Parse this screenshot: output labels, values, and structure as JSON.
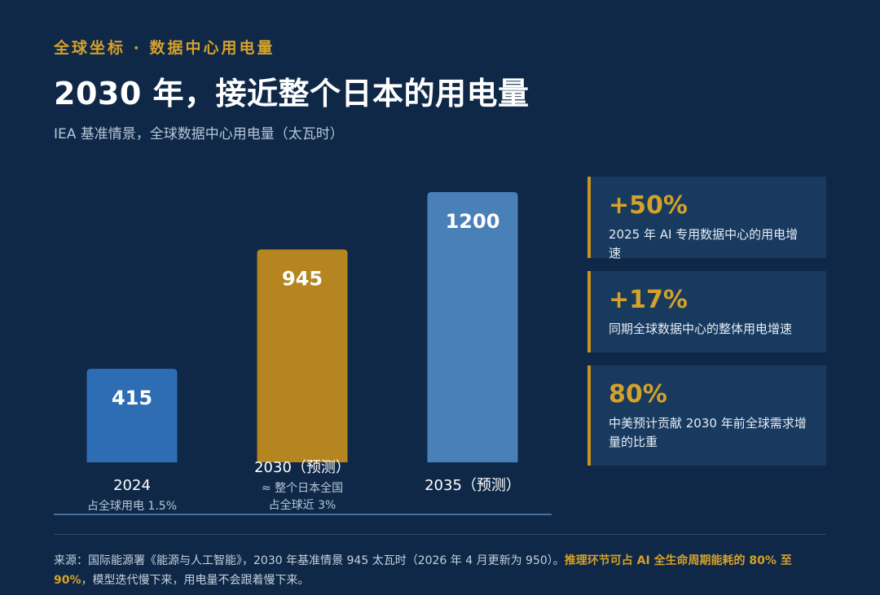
{
  "header": {
    "kicker": "全球坐标 · 数据中心用电量",
    "title": "2030 年，接近整个日本的用电量",
    "subtitle": "IEA 基准情景，全球数据中心用电量（太瓦时）"
  },
  "chart_data": {
    "type": "bar",
    "categories": [
      "2024",
      "2030（预测）",
      "2035（预测）"
    ],
    "values": [
      415,
      945,
      1200
    ],
    "value_labels": [
      "415",
      "945",
      "1200"
    ],
    "notes": [
      [
        "占全球用电 1.5%"
      ],
      [
        "≈ 整个日本全国",
        "占全球近 3%"
      ],
      []
    ],
    "colors": [
      "#2e6db3",
      "#b5861f",
      "#4a80b8"
    ],
    "unit": "太瓦时",
    "ylim": [
      0,
      1200
    ],
    "grid": false
  },
  "side_cards": [
    {
      "big": "+50%",
      "desc": [
        "2025 年 AI 专用数据中心的用电增速"
      ]
    },
    {
      "big": "+17%",
      "desc": [
        "同期全球数据中心的整体用电增速"
      ]
    },
    {
      "big": "80%",
      "desc": [
        "中美预计贡献 2030 年前全球需求增",
        "量的比重"
      ]
    }
  ],
  "footer": {
    "source_plain": "来源：国际能源署《能源与人工智能》，2030 年基准情景 945 太瓦时（2026 年 4 月更新为 950）。",
    "source_highlight": "推理环节可占 AI 全生命周期能耗的 80% 至 90%",
    "source_tail": "，模型迭代慢下来，用电量不会跟着慢下来。"
  },
  "colors": {
    "background": "#0f2847",
    "accent": "#d4a12a",
    "card": "#183a5f",
    "axis": "#4a6f96"
  }
}
